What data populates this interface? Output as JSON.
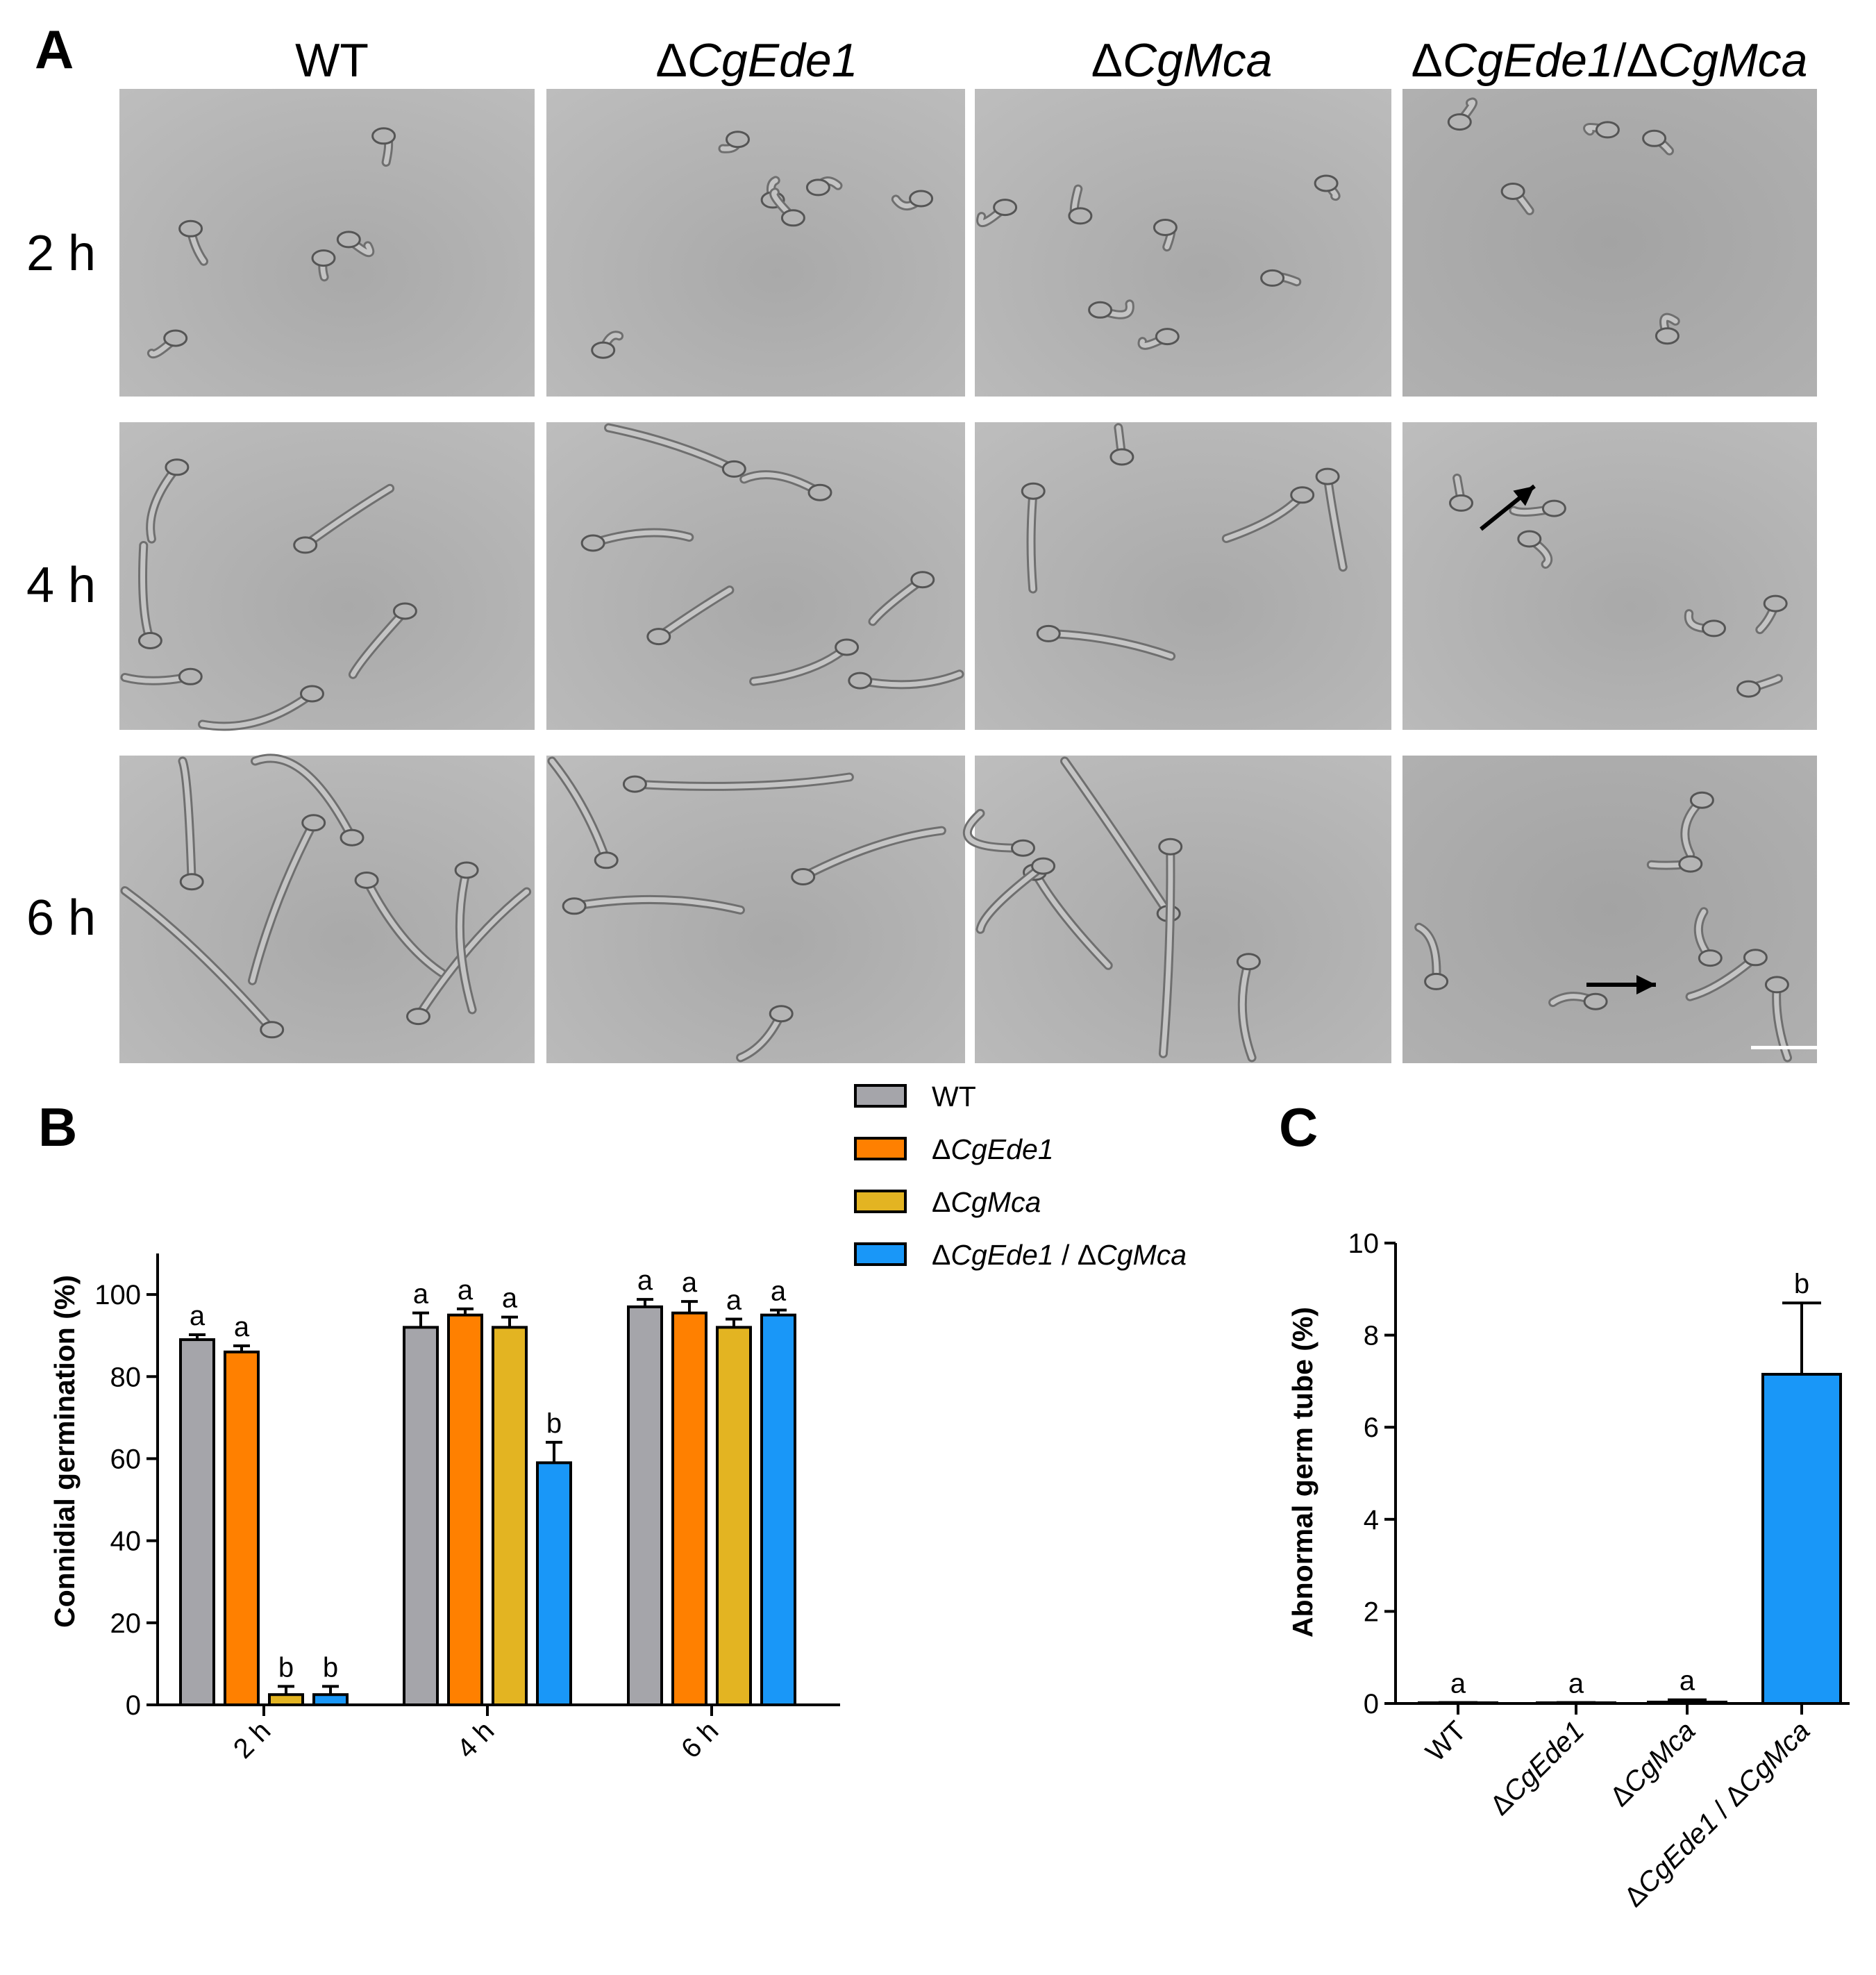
{
  "figure": {
    "panel_labels": [
      "A",
      "B",
      "C"
    ],
    "columns": [
      "WT",
      "ΔCgEde1",
      "ΔCgMca",
      "ΔCgEde1/ΔCgMca"
    ],
    "rows": [
      "2 h",
      "4 h",
      "6 h"
    ]
  },
  "legend": {
    "entries": [
      {
        "label": "WT",
        "color": "#a5a5aa"
      },
      {
        "label": "ΔCgEde1",
        "color": "#ff8000"
      },
      {
        "label": "ΔCgMca",
        "color": "#e3b422"
      },
      {
        "label": "ΔCgEde1 / ΔCgMca",
        "color": "#1997f8"
      }
    ]
  },
  "chart_data": [
    {
      "panel": "B",
      "type": "bar",
      "ylabel": "Connidial germination (%)",
      "xlabel": "",
      "categories": [
        "2 h",
        "4 h",
        "6 h"
      ],
      "ylim": [
        0,
        110
      ],
      "yticks": [
        0,
        20,
        40,
        60,
        80,
        100
      ],
      "series": [
        {
          "name": "WT",
          "color": "#a5a5aa",
          "values": [
            89,
            92,
            97
          ],
          "errors": [
            1.2,
            3.5,
            1.8
          ],
          "letters": [
            "a",
            "a",
            "a"
          ]
        },
        {
          "name": "ΔCgEde1",
          "color": "#ff8000",
          "values": [
            86,
            95,
            95.5
          ],
          "errors": [
            1.5,
            1.5,
            2.8
          ],
          "letters": [
            "a",
            "a",
            "a"
          ]
        },
        {
          "name": "ΔCgMca",
          "color": "#e3b422",
          "values": [
            2.5,
            92,
            92
          ],
          "errors": [
            2,
            2.5,
            2
          ],
          "letters": [
            "b",
            "a",
            "a"
          ]
        },
        {
          "name": "ΔCgEde1 / ΔCgMca",
          "color": "#1997f8",
          "values": [
            2.5,
            59,
            95
          ],
          "errors": [
            2,
            5,
            1.2
          ],
          "letters": [
            "b",
            "b",
            "a"
          ]
        }
      ]
    },
    {
      "panel": "C",
      "type": "bar",
      "ylabel": "Abnormal germ tube (%)",
      "xlabel": "",
      "categories": [
        "WT",
        "ΔCgEde1",
        "ΔCgMca",
        "ΔCgEde1 / ΔCgMca"
      ],
      "ylim": [
        0,
        10
      ],
      "yticks": [
        0,
        2,
        4,
        6,
        8,
        10
      ],
      "values": [
        0,
        0,
        0.03,
        7.15
      ],
      "errors": [
        0.02,
        0.02,
        0.05,
        1.55
      ],
      "letters": [
        "a",
        "a",
        "a",
        "b"
      ],
      "colors": [
        "#a5a5aa",
        "#ff8000",
        "#e3b422",
        "#1997f8"
      ]
    }
  ]
}
